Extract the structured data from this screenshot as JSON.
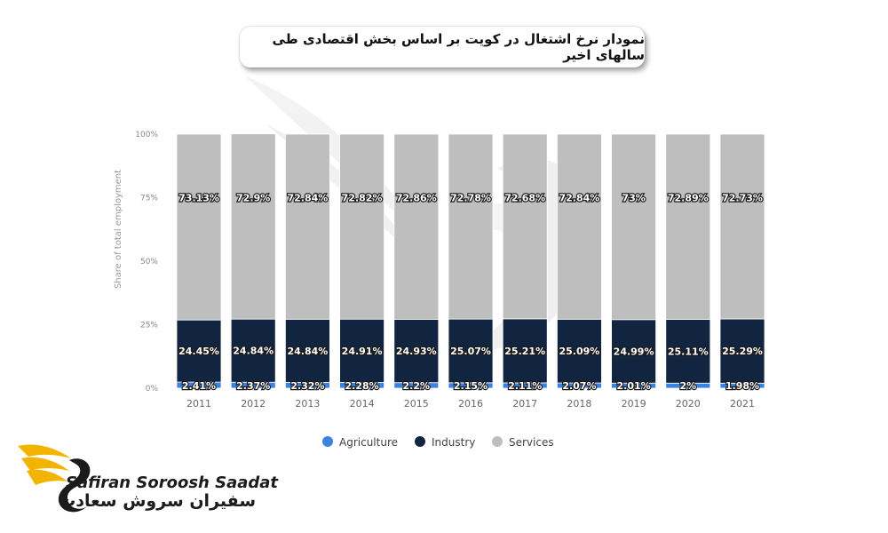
{
  "title": "نمودار نرخ اشتغال در کویت بر اساس بخش اقتصادی طی سالهای اخیر",
  "logo": {
    "name_en": "Safiran Soroosh Saadat",
    "name_fa": "سفیران سروش سعادت"
  },
  "chart_data": {
    "type": "bar",
    "stacked": true,
    "categories": [
      "2011",
      "2012",
      "2013",
      "2014",
      "2015",
      "2016",
      "2017",
      "2018",
      "2019",
      "2020",
      "2021"
    ],
    "series": [
      {
        "name": "Agriculture",
        "color": "#3c82e0",
        "values": [
          2.41,
          2.37,
          2.32,
          2.28,
          2.2,
          2.15,
          2.11,
          2.07,
          2.01,
          2,
          1.98
        ],
        "labels": [
          "2.41%",
          "2.37%",
          "2.32%",
          "2.28%",
          "2.2%",
          "2.15%",
          "2.11%",
          "2.07%",
          "2.01%",
          "2%",
          "1.98%"
        ]
      },
      {
        "name": "Industry",
        "color": "#122540",
        "values": [
          24.45,
          24.84,
          24.84,
          24.91,
          24.93,
          25.07,
          25.21,
          25.09,
          24.99,
          25.11,
          25.29
        ],
        "labels": [
          "24.45%",
          "24.84%",
          "24.84%",
          "24.91%",
          "24.93%",
          "25.07%",
          "25.21%",
          "25.09%",
          "24.99%",
          "25.11%",
          "25.29%"
        ]
      },
      {
        "name": "Services",
        "color": "#bebebe",
        "values": [
          73.13,
          72.9,
          72.84,
          72.82,
          72.86,
          72.78,
          72.68,
          72.84,
          73,
          72.89,
          72.73
        ],
        "labels": [
          "73.13%",
          "72.9%",
          "72.84%",
          "72.82%",
          "72.86%",
          "72.78%",
          "72.68%",
          "72.84%",
          "73%",
          "72.89%",
          "72.73%"
        ]
      }
    ],
    "ylabel": "Share of total employment",
    "ylim": [
      0,
      100
    ],
    "yticks": [
      "0%",
      "25%",
      "50%",
      "75%",
      "100%"
    ],
    "legend_position": "bottom",
    "grid": false
  }
}
